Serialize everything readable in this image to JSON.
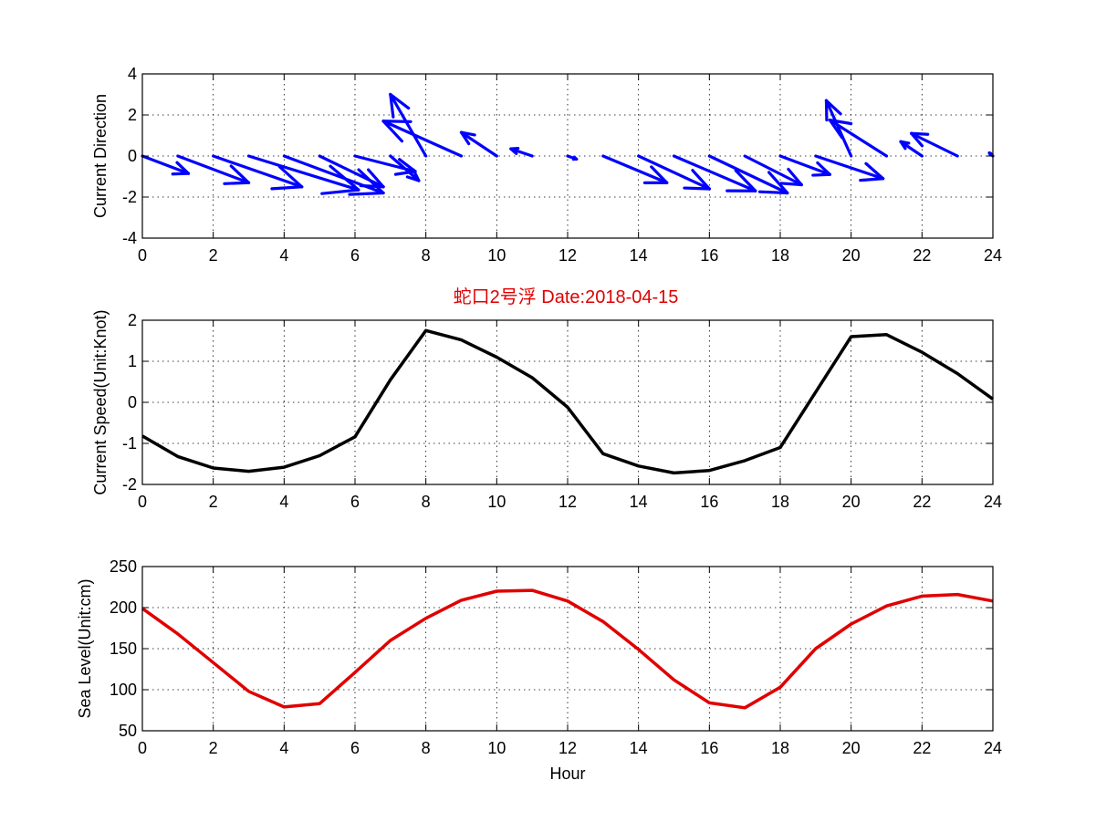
{
  "title": {
    "text": "蛇口2号浮   Date:2018-04-15",
    "color": "#e00000"
  },
  "chart_data": [
    {
      "type": "quiver",
      "ylabel": "Current Direction",
      "xlim": [
        0,
        24
      ],
      "ylim": [
        -4,
        4
      ],
      "xticks": [
        0,
        2,
        4,
        6,
        8,
        10,
        12,
        14,
        16,
        18,
        20,
        22,
        24
      ],
      "yticks": [
        -4,
        -2,
        0,
        2,
        4
      ],
      "grid": true,
      "color": "#0000ff",
      "x": [
        0,
        1,
        2,
        3,
        4,
        5,
        6,
        7,
        8,
        9,
        10,
        11,
        12,
        13,
        14,
        15,
        16,
        17,
        18,
        19,
        20,
        21,
        22,
        23,
        24
      ],
      "u": [
        1.3,
        2.0,
        2.5,
        3.1,
        2.8,
        1.8,
        1.7,
        0.8,
        -1.0,
        -2.2,
        -1.0,
        -0.6,
        0.25,
        1.8,
        2.0,
        2.3,
        2.2,
        1.6,
        1.4,
        1.9,
        -0.7,
        -1.6,
        -0.6,
        -1.3,
        -0.1
      ],
      "v": [
        -0.85,
        -1.3,
        -1.5,
        -1.65,
        -1.8,
        -1.5,
        -0.75,
        -1.2,
        3.0,
        1.7,
        1.15,
        0.35,
        -0.15,
        -1.3,
        -1.6,
        -1.7,
        -1.8,
        -1.4,
        -0.9,
        -1.1,
        2.7,
        1.75,
        0.7,
        1.1,
        0.15
      ]
    },
    {
      "type": "line",
      "ylabel": "Current Speed(Unit:Knot)",
      "xlim": [
        0,
        24
      ],
      "ylim": [
        -2,
        2
      ],
      "xticks": [
        0,
        2,
        4,
        6,
        8,
        10,
        12,
        14,
        16,
        18,
        20,
        22,
        24
      ],
      "yticks": [
        -2,
        -1,
        0,
        1,
        2
      ],
      "grid": true,
      "color": "#000000",
      "x": [
        0,
        1,
        2,
        3,
        4,
        5,
        6,
        7,
        8,
        9,
        10,
        11,
        12,
        13,
        14,
        15,
        16,
        17,
        18,
        19,
        20,
        21,
        22,
        23,
        24
      ],
      "y": [
        -0.82,
        -1.32,
        -1.6,
        -1.68,
        -1.58,
        -1.3,
        -0.84,
        0.55,
        1.75,
        1.52,
        1.1,
        0.6,
        -0.12,
        -1.25,
        -1.55,
        -1.72,
        -1.66,
        -1.42,
        -1.1,
        0.25,
        1.6,
        1.65,
        1.22,
        0.7,
        0.08
      ]
    },
    {
      "type": "line",
      "ylabel": "Sea Level(Unit:cm)",
      "xlabel": "Hour",
      "xlim": [
        0,
        24
      ],
      "ylim": [
        50,
        250
      ],
      "xticks": [
        0,
        2,
        4,
        6,
        8,
        10,
        12,
        14,
        16,
        18,
        20,
        22,
        24
      ],
      "yticks": [
        50,
        100,
        150,
        200,
        250
      ],
      "grid": true,
      "color": "#e00000",
      "x": [
        0,
        1,
        2,
        3,
        4,
        5,
        6,
        7,
        8,
        9,
        10,
        11,
        12,
        13,
        14,
        15,
        16,
        17,
        18,
        19,
        20,
        21,
        22,
        23,
        24
      ],
      "y": [
        199,
        168,
        133,
        98,
        79,
        83,
        121,
        160,
        187,
        209,
        220,
        221,
        208,
        183,
        149,
        112,
        84,
        78,
        103,
        150,
        180,
        202,
        214,
        216,
        208
      ]
    }
  ]
}
